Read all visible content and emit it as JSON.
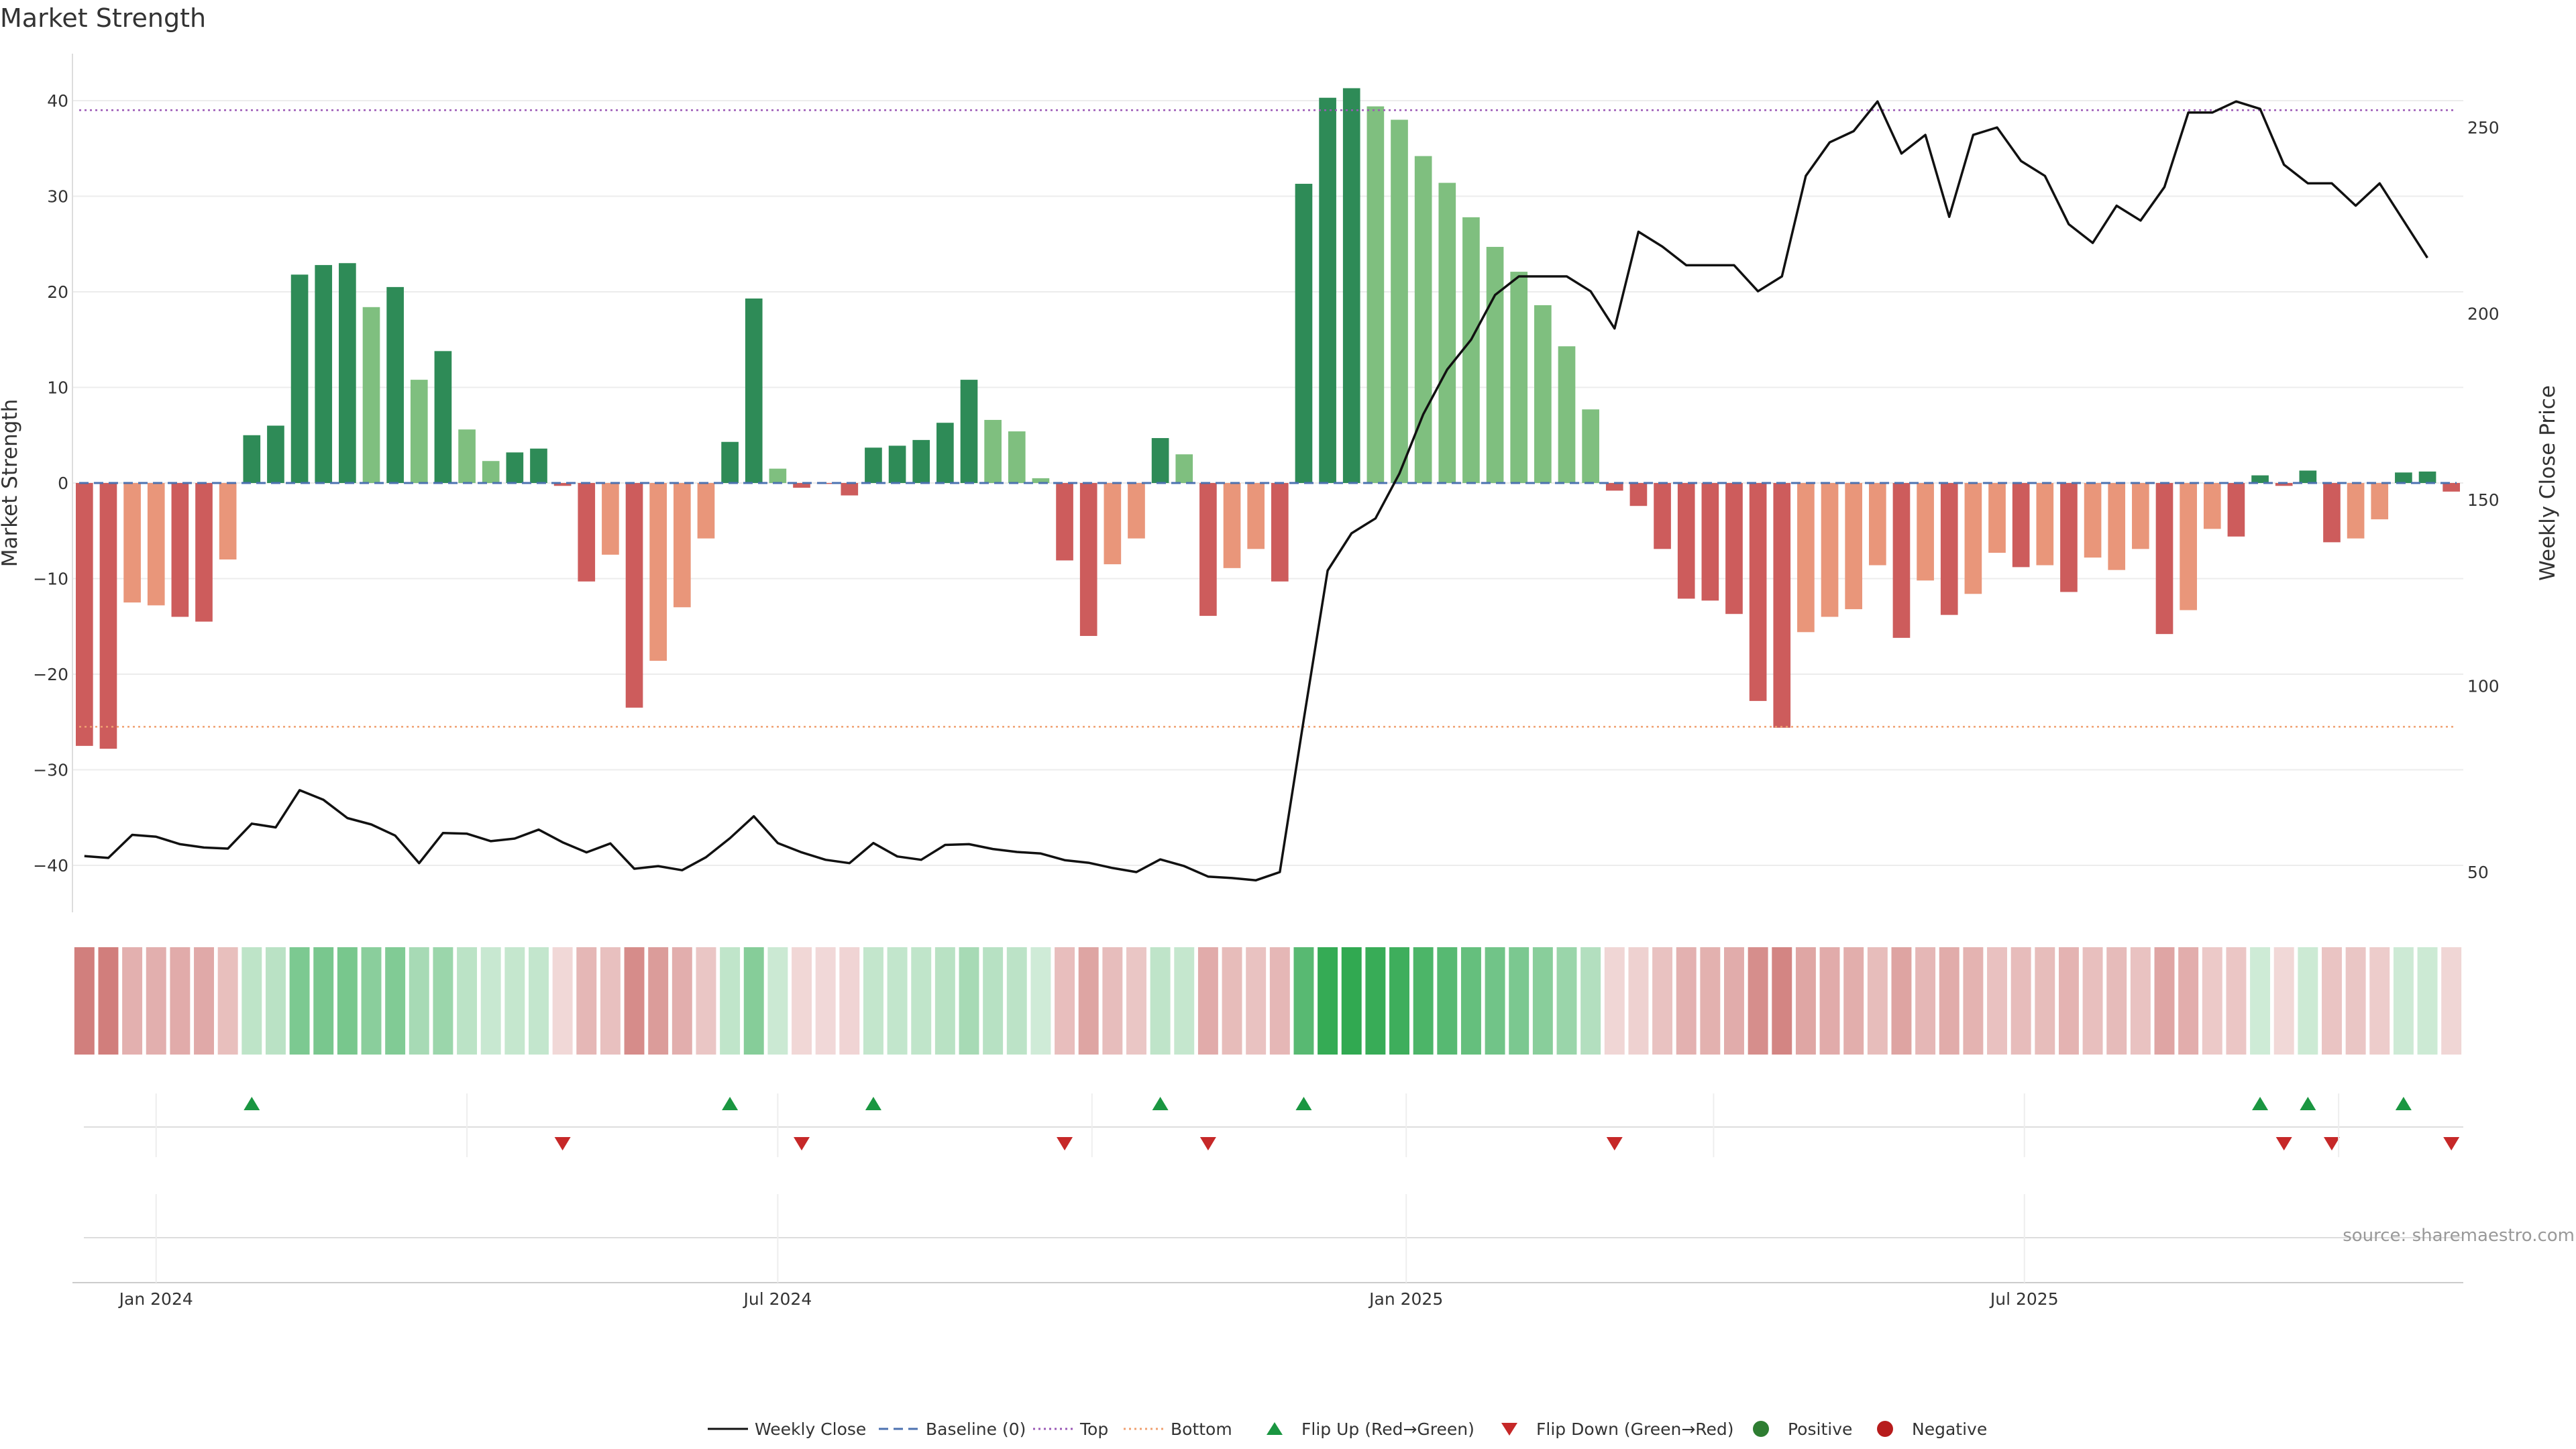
{
  "chart_data": {
    "type": "bar",
    "title": "Market Strength",
    "ylabel_left": "Market Strength",
    "ylabel_right": "Weekly Close Price",
    "xlabel": "",
    "grid": true,
    "legend_position": "bottom-center",
    "ylim_left": [
      -45,
      45
    ],
    "ylim_right": [
      40,
      260
    ],
    "yticks_left": [
      40,
      30,
      20,
      10,
      0,
      -10,
      -20,
      -30,
      -40
    ],
    "yticks_left_labels": [
      "40",
      "30",
      "20",
      "10",
      "0",
      "−10",
      "−20",
      "−30",
      "−40"
    ],
    "yticks_right": [
      250,
      200,
      150,
      100,
      50
    ],
    "yticks_right_labels": [
      "250",
      "200",
      "150",
      "100",
      "50"
    ],
    "x_start_date": "2023-12-11",
    "x_end_date": "2025-10-27",
    "x_ticks": [
      {
        "date": "2024-01-01",
        "label": "Jan 2024"
      },
      {
        "date": "2024-07-01",
        "label": "Jul 2024"
      },
      {
        "date": "2025-01-01",
        "label": "Jan 2025"
      },
      {
        "date": "2025-07-01",
        "label": "Jul 2025"
      }
    ],
    "reference_lines": [
      {
        "name": "Baseline (0)",
        "value": 0,
        "color": "#4c72b0",
        "style": "dashed"
      },
      {
        "name": "Top",
        "value": 39,
        "color": "#9b59b6",
        "style": "dotted"
      },
      {
        "name": "Bottom",
        "value": -25.5,
        "color": "#f0a070",
        "style": "dotted"
      }
    ],
    "colors": {
      "pos_strong": "#2e8b57",
      "pos_weak": "#7fbf7f",
      "neg_strong": "#cd5c5c",
      "neg_weak": "#e9967a",
      "flip_up": "#1a9641",
      "flip_down": "#c62828",
      "positive_dot": "#2e7d32",
      "negative_dot": "#b71c1c",
      "close_line": "#111111"
    },
    "strength": [
      -27.5,
      -27.8,
      -12.5,
      -12.8,
      -14,
      -14.5,
      -8,
      5,
      6,
      21.8,
      22.8,
      23,
      18.4,
      20.5,
      10.8,
      13.8,
      5.6,
      2.3,
      3.2,
      3.6,
      -0.3,
      -10.3,
      -7.5,
      -23.5,
      -18.6,
      -13,
      -5.8,
      4.3,
      19.3,
      1.5,
      -0.5,
      -0.1,
      -1.3,
      3.7,
      3.9,
      4.5,
      6.3,
      10.8,
      6.6,
      5.4,
      0.5,
      -8.1,
      -16,
      -8.5,
      -5.8,
      4.7,
      3,
      -13.9,
      -8.9,
      -6.9,
      -10.3,
      31.3,
      40.3,
      41.3,
      39.4,
      38,
      34.2,
      31.4,
      27.8,
      24.7,
      22.1,
      18.6,
      14.3,
      7.7,
      -0.8,
      -2.4,
      -6.9,
      -12.1,
      -12.3,
      -13.7,
      -22.8,
      -25.6,
      -15.6,
      -14,
      -13.2,
      -8.6,
      -16.2,
      -10.2,
      -13.8,
      -11.6,
      -7.3,
      -8.8,
      -8.6,
      -11.4,
      -7.8,
      -9.1,
      -6.9,
      -15.8,
      -13.3,
      -4.8,
      -5.6,
      0.8,
      -0.3,
      1.3,
      -6.2,
      -5.8,
      -3.8,
      1.1,
      1.2,
      -0.9
    ],
    "strong": [
      1,
      1,
      0,
      0,
      1,
      1,
      0,
      1,
      1,
      1,
      1,
      1,
      0,
      1,
      0,
      1,
      0,
      0,
      1,
      1,
      1,
      1,
      0,
      1,
      0,
      0,
      0,
      1,
      1,
      0,
      1,
      1,
      1,
      1,
      1,
      1,
      1,
      1,
      0,
      0,
      0,
      1,
      1,
      0,
      0,
      1,
      0,
      1,
      0,
      0,
      1,
      1,
      1,
      1,
      0,
      0,
      0,
      0,
      0,
      0,
      0,
      0,
      0,
      0,
      1,
      1,
      1,
      1,
      1,
      1,
      1,
      1,
      0,
      0,
      0,
      0,
      1,
      0,
      1,
      0,
      0,
      1,
      0,
      1,
      0,
      0,
      0,
      1,
      0,
      0,
      1,
      1,
      1,
      1,
      1,
      0,
      0,
      1,
      1,
      1
    ],
    "weekly_close": [
      54.3,
      53.8,
      60,
      59.5,
      57.5,
      56.6,
      56.3,
      63,
      62,
      72,
      69.4,
      64.5,
      62.8,
      59.8,
      52.4,
      60.5,
      60.3,
      58.3,
      59,
      61.4,
      58,
      55.3,
      57.7,
      50.9,
      51.6,
      50.5,
      54,
      59.1,
      65,
      57.8,
      55.3,
      53.3,
      52.4,
      57.8,
      54.2,
      53.3,
      57.3,
      57.5,
      56.2,
      55.4,
      55,
      53.2,
      52.5,
      51.1,
      50,
      53.4,
      51.6,
      48.8,
      48.4,
      47.8,
      50,
      91,
      131,
      141,
      145,
      157,
      173,
      185,
      193,
      205,
      210,
      210,
      210,
      206,
      196,
      222,
      218,
      213,
      213,
      213,
      206,
      210,
      237,
      246,
      249,
      257,
      243,
      248,
      226,
      248,
      250,
      241,
      237,
      224,
      219,
      229,
      225,
      234,
      254,
      254,
      257,
      255,
      240,
      235,
      235,
      229,
      235,
      225,
      215
    ]
  },
  "bottom_labels": [
    {
      "kind": "line",
      "label": "Weekly Close"
    },
    {
      "kind": "baseline",
      "label": "Baseline (0)"
    },
    {
      "kind": "top",
      "label": "Top"
    },
    {
      "kind": "bottom",
      "label": "Bottom"
    },
    {
      "kind": "flip_up",
      "label": "Flip Up (Red→Green)"
    },
    {
      "kind": "flip_down",
      "label": "Flip Down (Green→Red)"
    },
    {
      "kind": "positive",
      "label": "Positive"
    },
    {
      "kind": "negative",
      "label": "Negative"
    }
  ],
  "source": "source: sharemaestro.com"
}
